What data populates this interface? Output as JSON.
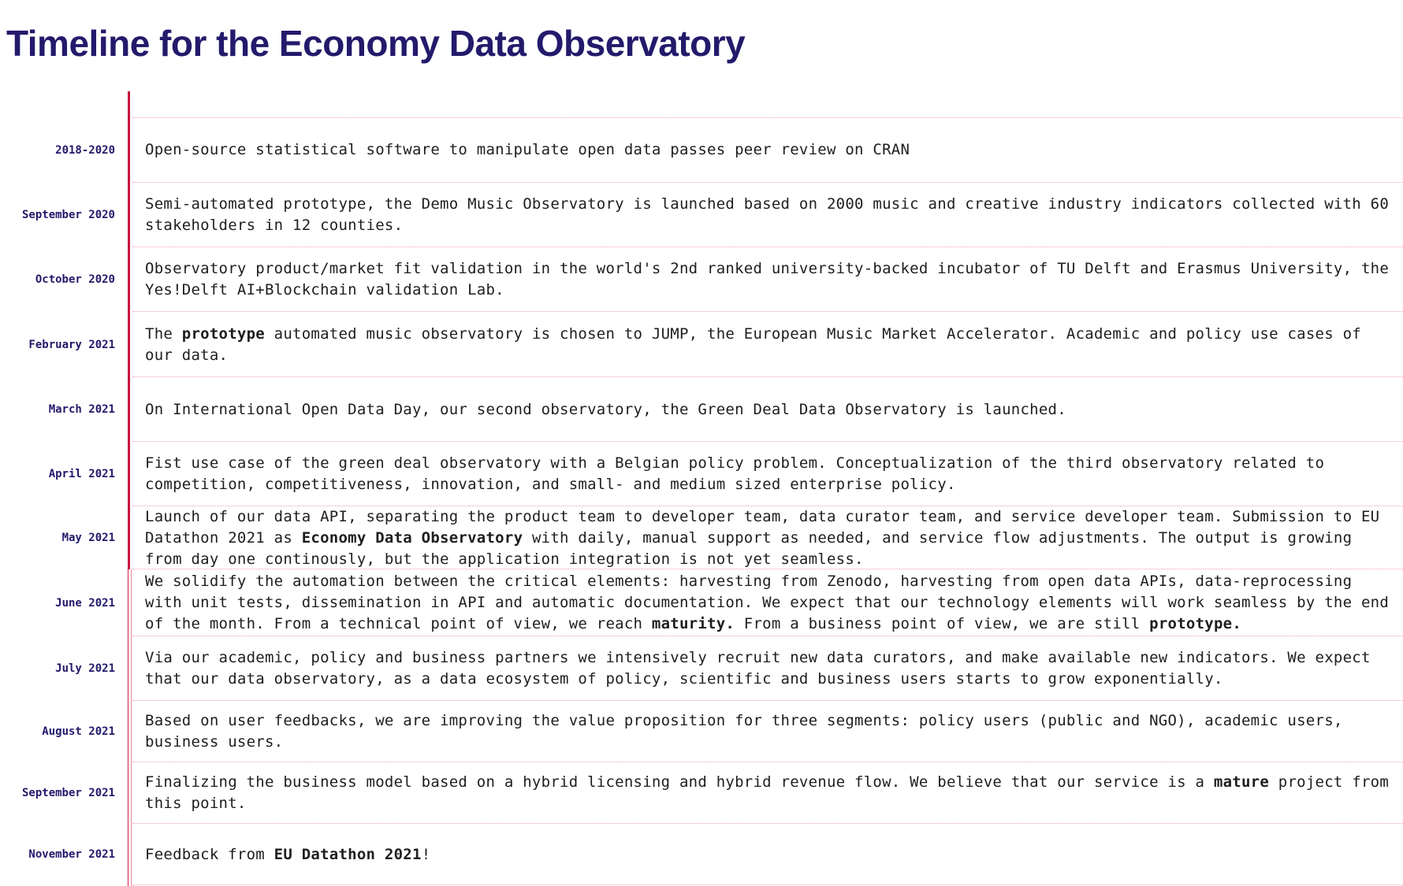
{
  "page": {
    "title": "Timeline for the Economy Data Observatory"
  },
  "timeline": [
    {
      "date": "2018-2020",
      "text": [
        {
          "t": "Open-source statistical software to manipulate open data passes peer review on CRAN"
        }
      ]
    },
    {
      "date": "September 2020",
      "text": [
        {
          "t": "Semi-automated prototype, the Demo Music Observatory is launched based on 2000 music  and creative industry indicators collected with 60 stakeholders in 12 counties."
        }
      ]
    },
    {
      "date": "October 2020",
      "text": [
        {
          "t": "Observatory product/market fit validation in the world's 2nd ranked university-backed incubator of TU Delft and Erasmus University, the Yes!Delft AI+Blockchain validation Lab."
        }
      ]
    },
    {
      "date": "February 2021",
      "text": [
        {
          "t": "The "
        },
        {
          "t": "prototype",
          "b": true
        },
        {
          "t": " automated music observatory is chosen to JUMP, the European Music Market Accelerator.  Academic and policy use cases of our data."
        }
      ]
    },
    {
      "date": "March 2021",
      "text": [
        {
          "t": "On International Open Data Day, our second observatory, the Green Deal Data Observatory is launched."
        }
      ]
    },
    {
      "date": "April 2021",
      "text": [
        {
          "t": "Fist use case of the green deal observatory with a Belgian policy problem. Conceptualization of the third observatory related to competition, competitiveness, innovation, and small- and medium sized enterprise policy."
        }
      ]
    },
    {
      "date": "May 2021",
      "text": [
        {
          "t": "Launch of our data API, separating the product team to developer team, data curator team, and service developer team.  Submission to EU Datathon 2021 as "
        },
        {
          "t": "Economy Data Observatory",
          "b": true
        },
        {
          "t": " with daily, manual support as needed, and service flow adjustments. The output is growing from day one continously, but the application integration is not yet seamless."
        }
      ]
    },
    {
      "date": "June 2021",
      "text": [
        {
          "t": "We solidify the automation between the critical elements: harvesting from Zenodo, harvesting from open data APIs, data-reprocessing with unit tests, dissemination in API and automatic documentation.  We expect that our technology elements will work seamless by the end of the month.  From a technical point of view, we reach "
        },
        {
          "t": "maturity.",
          "b": true
        },
        {
          "t": " From a business point of view, we are still "
        },
        {
          "t": "prototype.",
          "b": true
        }
      ]
    },
    {
      "date": "July 2021",
      "text": [
        {
          "t": "Via our academic, policy and business partners we intensively recruit new data curators, and make available new indicators. We expect that our data observatory, as a data ecosystem of policy, scientific and business users starts to grow exponentially."
        }
      ]
    },
    {
      "date": "August 2021",
      "text": [
        {
          "t": "Based on user feedbacks, we are improving the value proposition for three segments: policy users (public and NGO), academic users, business users."
        }
      ]
    },
    {
      "date": "September 2021",
      "text": [
        {
          "t": "Finalizing the business model based on a hybrid licensing and hybrid revenue flow. We believe that our service is a "
        },
        {
          "t": "mature",
          "b": true
        },
        {
          "t": " project from this point."
        }
      ]
    },
    {
      "date": "November 2021",
      "text": [
        {
          "t": "Feedback from "
        },
        {
          "t": "EU Datathon 2021",
          "b": true
        },
        {
          "t": "!"
        }
      ]
    }
  ]
}
